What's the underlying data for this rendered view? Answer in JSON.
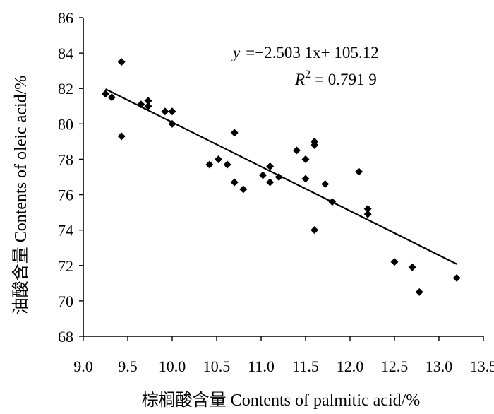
{
  "chart_data": {
    "type": "scatter",
    "title": "",
    "xlabel": "棕榈酸含量 Contents of palmitic acid/%",
    "ylabel": "油酸含量 Contents of oleic acid/%",
    "xlim": [
      9.0,
      13.5
    ],
    "ylim": [
      68,
      86
    ],
    "x_ticks": [
      "9.0",
      "9.5",
      "10.0",
      "10.5",
      "11.0",
      "11.5",
      "12.0",
      "12.5",
      "13.0",
      "13.5"
    ],
    "y_ticks": [
      "68",
      "70",
      "72",
      "74",
      "76",
      "78",
      "80",
      "82",
      "84",
      "86"
    ],
    "grid": false,
    "legend": "none",
    "marker": "diamond",
    "marker_color": "#000000",
    "points": [
      {
        "x": 9.25,
        "y": 81.7
      },
      {
        "x": 9.32,
        "y": 81.5
      },
      {
        "x": 9.43,
        "y": 83.5
      },
      {
        "x": 9.43,
        "y": 79.3
      },
      {
        "x": 9.65,
        "y": 81.1
      },
      {
        "x": 9.73,
        "y": 81.3
      },
      {
        "x": 9.73,
        "y": 81.0
      },
      {
        "x": 9.92,
        "y": 80.7
      },
      {
        "x": 10.0,
        "y": 80.7
      },
      {
        "x": 10.0,
        "y": 80.0
      },
      {
        "x": 10.42,
        "y": 77.7
      },
      {
        "x": 10.52,
        "y": 78.0
      },
      {
        "x": 10.62,
        "y": 77.7
      },
      {
        "x": 10.7,
        "y": 79.5
      },
      {
        "x": 10.7,
        "y": 76.7
      },
      {
        "x": 10.8,
        "y": 76.3
      },
      {
        "x": 11.02,
        "y": 77.1
      },
      {
        "x": 11.1,
        "y": 77.6
      },
      {
        "x": 11.1,
        "y": 76.7
      },
      {
        "x": 11.2,
        "y": 77.0
      },
      {
        "x": 11.4,
        "y": 78.5
      },
      {
        "x": 11.5,
        "y": 78.0
      },
      {
        "x": 11.5,
        "y": 76.9
      },
      {
        "x": 11.6,
        "y": 79.0
      },
      {
        "x": 11.6,
        "y": 78.8
      },
      {
        "x": 11.6,
        "y": 74.0
      },
      {
        "x": 11.72,
        "y": 76.6
      },
      {
        "x": 11.8,
        "y": 75.6
      },
      {
        "x": 12.1,
        "y": 77.3
      },
      {
        "x": 12.2,
        "y": 75.2
      },
      {
        "x": 12.2,
        "y": 74.9
      },
      {
        "x": 12.5,
        "y": 72.2
      },
      {
        "x": 12.7,
        "y": 71.9
      },
      {
        "x": 12.78,
        "y": 70.5
      },
      {
        "x": 13.2,
        "y": 71.3
      }
    ],
    "trendline": {
      "slope": -2.5031,
      "intercept": 105.12,
      "x_range": [
        9.25,
        13.2
      ]
    },
    "annotations": {
      "equation_y": "y",
      "equation_rest": "=−2.503 1x+ 105.12",
      "equation_r": "R",
      "equation_sup": "2",
      "equation_r_rest": "= 0.791 9"
    }
  }
}
